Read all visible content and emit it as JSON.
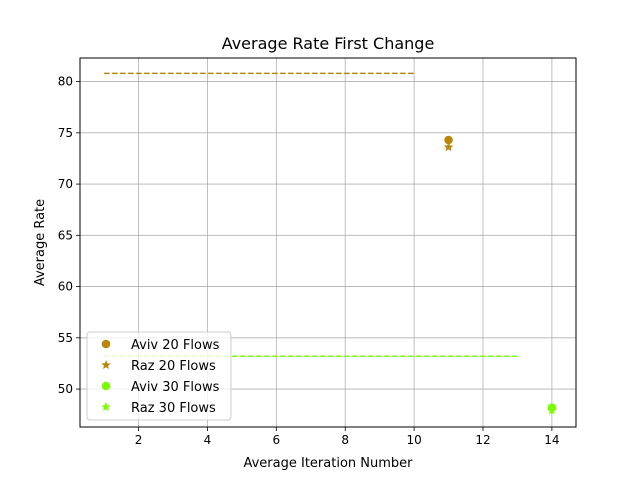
{
  "chart_data": {
    "type": "scatter",
    "title": "Average Rate First Change",
    "xlabel": "Average Iteration Number",
    "ylabel": "Average Rate",
    "xlim": [
      0.3,
      14.7
    ],
    "ylim": [
      46.3,
      82.3
    ],
    "xticks": [
      2,
      4,
      6,
      8,
      10,
      12,
      14
    ],
    "yticks": [
      50,
      55,
      60,
      65,
      70,
      75,
      80
    ],
    "grid": true,
    "legend_position": "lower-left",
    "series": [
      {
        "name": "Aviv 20 Flows",
        "marker": "circle",
        "color": "#B8860B",
        "points": [
          {
            "x": 11,
            "y": 74.3
          }
        ]
      },
      {
        "name": "Raz 20 Flows",
        "marker": "star",
        "color": "#B8860B",
        "points": [
          {
            "x": 11,
            "y": 73.6
          }
        ]
      },
      {
        "name": "Aviv 30 Flows",
        "marker": "circle",
        "color": "#7CFC00",
        "points": [
          {
            "x": 14,
            "y": 48.2
          }
        ]
      },
      {
        "name": "Raz 30 Flows",
        "marker": "star",
        "color": "#7CFC00",
        "points": [
          {
            "x": 14,
            "y": 47.9
          }
        ]
      }
    ],
    "reference_lines": [
      {
        "y": 80.8,
        "x_start": 1,
        "x_end": 10,
        "style": "dashed",
        "color": "#B8860B"
      },
      {
        "y": 53.2,
        "x_start": 1,
        "x_end": 13,
        "style": "dashed",
        "color": "#7CFC00"
      }
    ]
  }
}
